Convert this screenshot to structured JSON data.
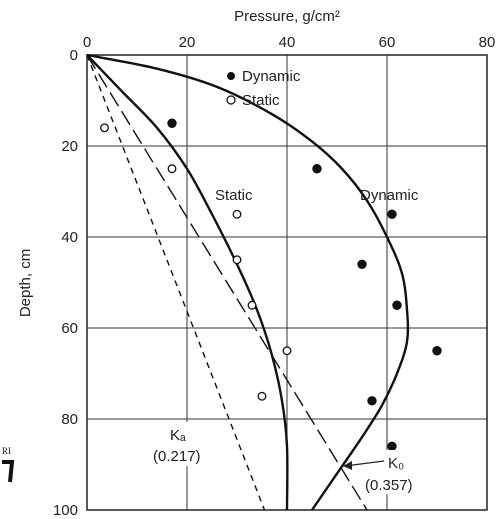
{
  "chart_data": {
    "type": "scatter",
    "xlabel": "Pressure, g/cm²",
    "ylabel": "Depth, cm",
    "xlim": [
      0,
      80
    ],
    "ylim": [
      0,
      100
    ],
    "y_inverted": true,
    "x_axis_position": "top",
    "x_ticks": [
      "0",
      "20",
      "40",
      "60",
      "80"
    ],
    "y_ticks": [
      "0",
      "20",
      "40",
      "60",
      "80",
      "100"
    ],
    "grid": true,
    "legend_position": "top-center",
    "series": [
      {
        "name": "Dynamic",
        "marker": "filled-circle",
        "points": [
          [
            17,
            15
          ],
          [
            46,
            25
          ],
          [
            61,
            35
          ],
          [
            55,
            46
          ],
          [
            62,
            55
          ],
          [
            70,
            65
          ],
          [
            57,
            76
          ],
          [
            61,
            86
          ]
        ]
      },
      {
        "name": "Static",
        "marker": "open-circle",
        "points": [
          [
            3.5,
            16
          ],
          [
            17,
            25
          ],
          [
            30,
            35
          ],
          [
            30,
            45
          ],
          [
            33,
            55
          ],
          [
            40,
            65
          ],
          [
            35,
            75
          ]
        ]
      }
    ],
    "curves": [
      {
        "label": "Static",
        "style": "solid",
        "points": [
          [
            0,
            0
          ],
          [
            7,
            8
          ],
          [
            14,
            16
          ],
          [
            20,
            25
          ],
          [
            25,
            35
          ],
          [
            30,
            46
          ],
          [
            34,
            56
          ],
          [
            37,
            66
          ],
          [
            39,
            76
          ],
          [
            40,
            86
          ],
          [
            40,
            100
          ]
        ]
      },
      {
        "label": "Dynamic",
        "style": "solid",
        "points": [
          [
            0,
            0
          ],
          [
            14,
            3
          ],
          [
            26,
            7
          ],
          [
            37,
            13
          ],
          [
            45,
            19
          ],
          [
            51,
            25
          ],
          [
            56,
            32
          ],
          [
            60,
            40
          ],
          [
            63,
            48
          ],
          [
            64,
            56
          ],
          [
            64,
            63
          ],
          [
            62,
            70
          ],
          [
            59,
            77
          ],
          [
            55,
            84
          ],
          [
            50,
            92
          ],
          [
            45,
            100
          ]
        ]
      },
      {
        "label": "K₀ (0.357)",
        "style": "long-dash",
        "points": [
          [
            0,
            0
          ],
          [
            56,
            100
          ]
        ]
      },
      {
        "label": "Kₐ (0.217)",
        "style": "short-dash",
        "points": [
          [
            0,
            0
          ],
          [
            35.5,
            100
          ]
        ]
      }
    ],
    "annotations": {
      "static_label": "Static",
      "dynamic_label": "Dynamic",
      "ka_label": "Kₐ",
      "ka_value": "(0.217)",
      "k0_label": "K₀",
      "k0_value": "(0.357)"
    },
    "legend": [
      {
        "label": "Dynamic",
        "marker": "filled-circle"
      },
      {
        "label": "Static",
        "marker": "open-circle"
      }
    ],
    "margin_mark": "RI"
  }
}
